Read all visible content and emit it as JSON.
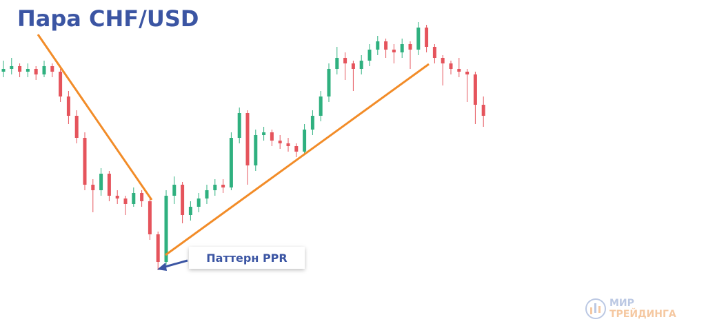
{
  "chart_data": {
    "type": "candlestick",
    "title": "Пара CHF/USD",
    "annotation": "Паттерн PPR",
    "up_color": "#2fb07f",
    "down_color": "#e5545c",
    "ylim": [
      0,
      100
    ],
    "ohlc": [
      [
        79,
        83,
        77,
        80
      ],
      [
        80,
        84,
        78,
        81
      ],
      [
        81,
        82,
        77,
        79
      ],
      [
        79,
        82,
        77,
        80
      ],
      [
        80,
        81,
        76,
        78
      ],
      [
        78,
        83,
        77,
        81
      ],
      [
        81,
        82,
        77,
        79
      ],
      [
        79,
        80,
        68,
        70
      ],
      [
        70,
        72,
        60,
        63
      ],
      [
        63,
        65,
        53,
        55
      ],
      [
        55,
        57,
        36,
        38
      ],
      [
        38,
        40,
        28,
        36
      ],
      [
        36,
        44,
        34,
        42
      ],
      [
        42,
        43,
        32,
        34
      ],
      [
        34,
        36,
        31,
        33
      ],
      [
        33,
        34,
        27,
        31
      ],
      [
        31,
        37,
        30,
        35
      ],
      [
        35,
        36,
        30,
        32
      ],
      [
        32,
        33,
        18,
        20
      ],
      [
        20,
        21,
        7,
        10
      ],
      [
        10,
        36,
        9,
        34
      ],
      [
        34,
        41,
        31,
        38
      ],
      [
        38,
        39,
        24,
        27
      ],
      [
        27,
        32,
        25,
        30
      ],
      [
        30,
        35,
        28,
        33
      ],
      [
        33,
        38,
        31,
        36
      ],
      [
        36,
        40,
        34,
        38
      ],
      [
        38,
        40,
        35,
        37
      ],
      [
        37,
        57,
        36,
        55
      ],
      [
        55,
        66,
        53,
        64
      ],
      [
        64,
        65,
        38,
        45
      ],
      [
        45,
        58,
        43,
        56
      ],
      [
        56,
        59,
        54,
        57
      ],
      [
        57,
        58,
        52,
        54
      ],
      [
        54,
        56,
        51,
        53
      ],
      [
        53,
        55,
        50,
        52
      ],
      [
        52,
        53,
        48,
        50
      ],
      [
        50,
        60,
        49,
        58
      ],
      [
        58,
        65,
        56,
        63
      ],
      [
        63,
        72,
        61,
        70
      ],
      [
        70,
        82,
        68,
        80
      ],
      [
        80,
        88,
        78,
        84
      ],
      [
        84,
        86,
        76,
        82
      ],
      [
        82,
        83,
        72,
        80
      ],
      [
        80,
        85,
        78,
        83
      ],
      [
        83,
        89,
        81,
        87
      ],
      [
        87,
        92,
        85,
        90
      ],
      [
        90,
        91,
        84,
        87
      ],
      [
        87,
        89,
        82,
        86
      ],
      [
        86,
        91,
        84,
        89
      ],
      [
        89,
        90,
        80,
        87
      ],
      [
        87,
        97,
        85,
        95
      ],
      [
        95,
        96,
        86,
        88
      ],
      [
        88,
        89,
        82,
        84
      ],
      [
        84,
        85,
        74,
        82
      ],
      [
        82,
        83,
        78,
        80
      ],
      [
        80,
        84,
        77,
        79
      ],
      [
        79,
        80,
        68,
        78
      ],
      [
        78,
        79,
        60,
        67
      ],
      [
        67,
        70,
        59,
        63
      ]
    ]
  },
  "logo": {
    "line1": "МИР",
    "line2": "ТРЕЙДИНГА"
  }
}
